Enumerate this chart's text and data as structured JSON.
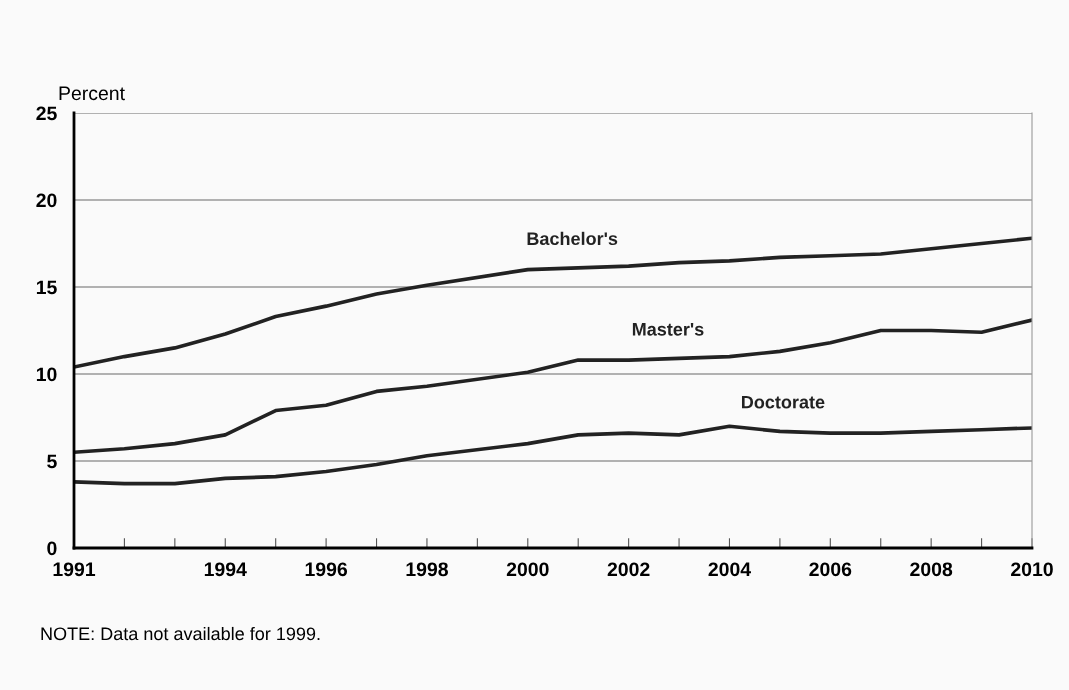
{
  "chart_data": {
    "type": "line",
    "ylabel": "Percent",
    "x": [
      1991,
      1992,
      1993,
      1994,
      1995,
      1996,
      1997,
      1998,
      2000,
      2001,
      2002,
      2003,
      2004,
      2005,
      2006,
      2007,
      2008,
      2009,
      2010
    ],
    "series": [
      {
        "name": "Bachelor's",
        "color": "#222222",
        "values": [
          10.4,
          11.0,
          11.5,
          12.3,
          13.3,
          13.9,
          14.6,
          15.1,
          16.0,
          16.1,
          16.2,
          16.4,
          16.5,
          16.7,
          16.8,
          16.9,
          17.2,
          17.5,
          17.8
        ]
      },
      {
        "name": "Master's",
        "color": "#222222",
        "values": [
          5.5,
          5.7,
          6.0,
          6.5,
          7.9,
          8.2,
          9.0,
          9.3,
          10.1,
          10.8,
          10.8,
          10.9,
          11.0,
          11.3,
          11.8,
          12.5,
          12.5,
          12.4,
          13.1
        ]
      },
      {
        "name": "Doctorate",
        "color": "#222222",
        "values": [
          3.8,
          3.7,
          3.7,
          4.0,
          4.1,
          4.4,
          4.8,
          5.3,
          6.0,
          6.5,
          6.6,
          6.5,
          7.0,
          6.7,
          6.6,
          6.6,
          6.7,
          6.8,
          6.9
        ]
      }
    ],
    "xlim": [
      1991,
      2010
    ],
    "xticks": [
      1991,
      {
        "value": 1992,
        "label": null
      },
      {
        "value": 1993,
        "label": null
      },
      1994,
      {
        "value": 1995,
        "label": null
      },
      1996,
      {
        "value": 1997,
        "label": null
      },
      1998,
      {
        "value": 1999,
        "label": null
      },
      2000,
      {
        "value": 2001,
        "label": null
      },
      2002,
      {
        "value": 2003,
        "label": null
      },
      2004,
      {
        "value": 2005,
        "label": null
      },
      2006,
      {
        "value": 2007,
        "label": null
      },
      2008,
      {
        "value": 2009,
        "label": null
      },
      2010
    ],
    "ylim": [
      0,
      25
    ],
    "yticks": [
      0,
      5,
      10,
      15,
      20,
      25
    ],
    "grid": "y",
    "marker": "none",
    "line_style": "solid",
    "annotations": [
      "NOTE: Data not available for 1999."
    ]
  }
}
